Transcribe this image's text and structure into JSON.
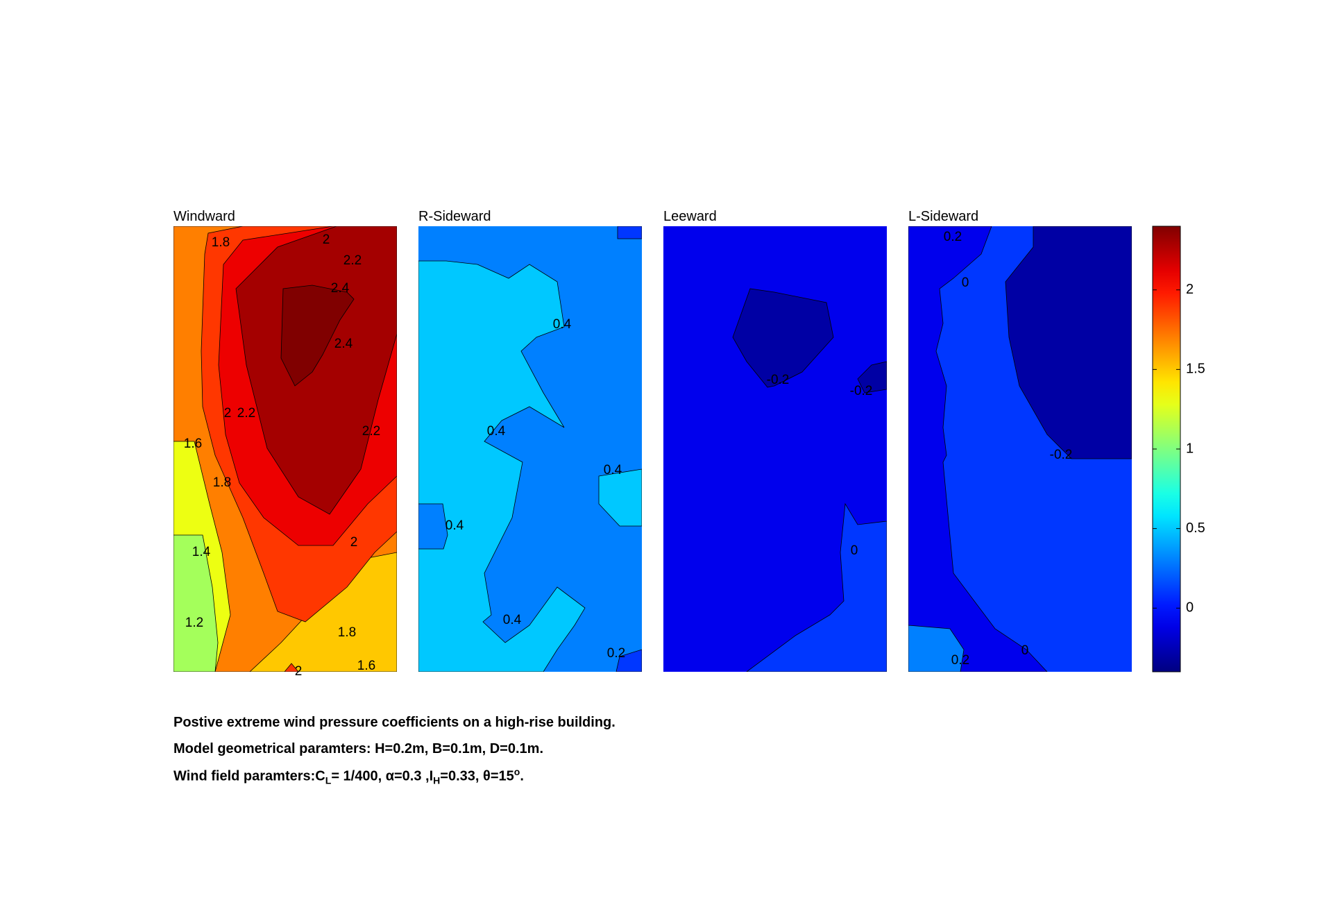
{
  "chart_data": {
    "type": "heatmap",
    "colormap": "jet",
    "clim": [
      -0.4,
      2.4
    ],
    "colorbar": {
      "ticks": [
        0,
        0.5,
        1,
        1.5,
        2
      ],
      "tick_labels": [
        "0",
        "0.5",
        "1",
        "1.5",
        "2"
      ],
      "placement": "right"
    },
    "panels": [
      {
        "title": "Windward",
        "contour_labels": [
          "2",
          "1.8",
          "2.2",
          "2.4",
          "2.4",
          "2",
          "2.2",
          "2.2",
          "1.6",
          "1.8",
          "2",
          "1.4",
          "1.2",
          "1.8",
          "1.6",
          "2"
        ],
        "regions": [
          {
            "value": 1.5
          },
          {
            "value": 1.7
          },
          {
            "value": 1.3
          },
          {
            "value": 1.1
          },
          {
            "value": 1.5
          },
          {
            "value": 1.9
          },
          {
            "value": 2.1
          },
          {
            "value": 2.3
          },
          {
            "value": 2.5
          },
          {
            "value": 1.9
          }
        ]
      },
      {
        "title": "R-Sideward",
        "contour_labels": [
          "0.4",
          "0.4",
          "0.4",
          "0.4",
          "0.4",
          "0.2"
        ],
        "regions": [
          {
            "value": 0.3
          },
          {
            "value": 0.5
          },
          {
            "value": 0.5
          },
          {
            "value": 0.3
          },
          {
            "value": 0.1
          },
          {
            "value": 0.1
          }
        ]
      },
      {
        "title": "Leeward",
        "contour_labels": [
          "-0.2",
          "-0.2",
          "0"
        ],
        "regions": [
          {
            "value": -0.1
          },
          {
            "value": -0.3
          },
          {
            "value": -0.3
          },
          {
            "value": 0.1
          }
        ]
      },
      {
        "title": "L-Sideward",
        "contour_labels": [
          "0.2",
          "0",
          "-0.2",
          "0.2",
          "0"
        ],
        "regions": [
          {
            "value": 0.1
          },
          {
            "value": -0.1
          },
          {
            "value": -0.3
          },
          {
            "value": 0.3
          }
        ]
      }
    ]
  },
  "caption": {
    "line1": "Postive extreme  wind pressure coefficients on a high-rise building.",
    "line2": "Model geometrical paramters: H=0.2m, B=0.1m, D=0.1m.",
    "line3_a": "Wind field paramters:C",
    "line3_sub_l": "L",
    "line3_b": "= 1/400, α=0.3 ,I",
    "line3_sub_h": "H",
    "line3_c": "=0.33, θ=15",
    "line3_sup": "o",
    "line3_d": "."
  }
}
